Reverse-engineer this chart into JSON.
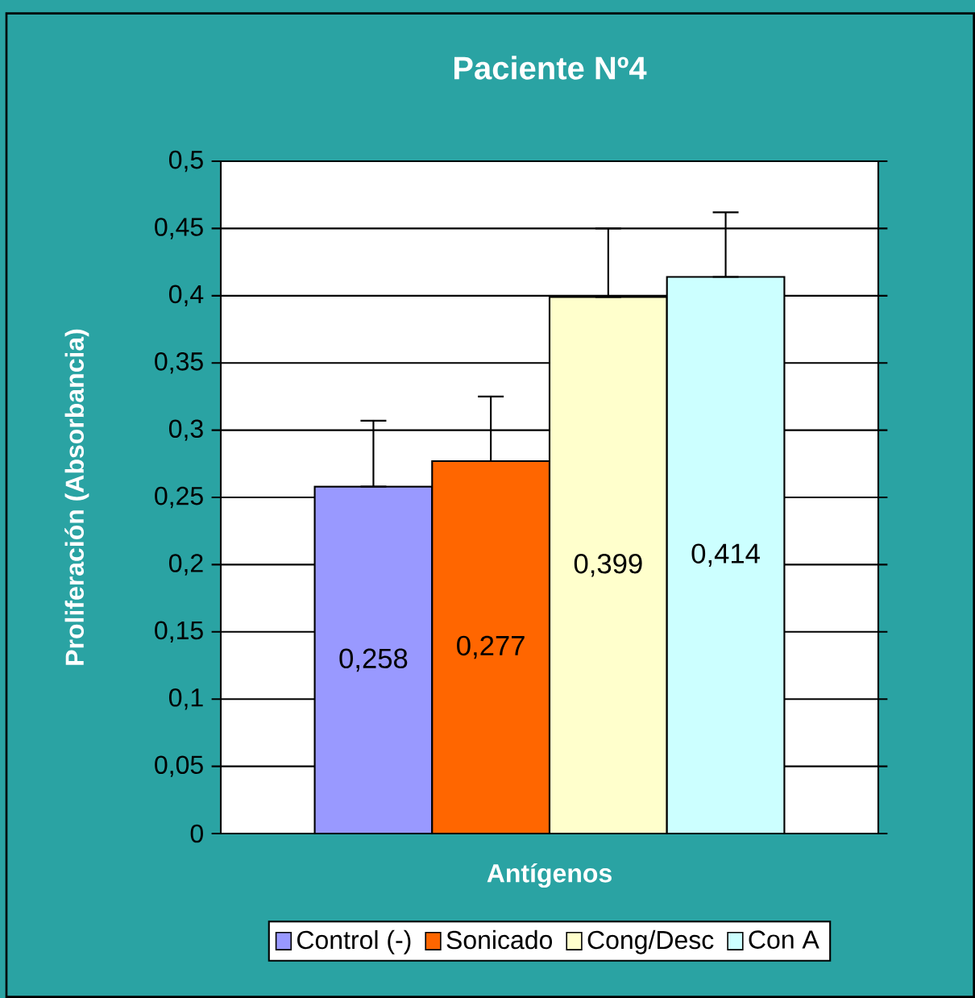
{
  "chart_data": {
    "type": "bar",
    "title": "Paciente Nº4",
    "xlabel": "Antígenos",
    "ylabel": "Proliferación (Absorbancia)",
    "categories": [
      null
    ],
    "series": [
      {
        "name": "Control (-)",
        "color": "#9999ff",
        "values": [
          0.258
        ],
        "value_labels": [
          "0,258"
        ],
        "errors": [
          [
            0.258,
            0.307
          ]
        ]
      },
      {
        "name": "Sonicado",
        "color": "#ff6600",
        "values": [
          0.277
        ],
        "value_labels": [
          "0,277"
        ],
        "errors": [
          [
            0.277,
            0.325
          ]
        ]
      },
      {
        "name": "Cong/Desc",
        "color": "#ffffcc",
        "values": [
          0.399
        ],
        "value_labels": [
          "0,399"
        ],
        "errors": [
          [
            0.399,
            0.45
          ]
        ]
      },
      {
        "name": "Con A",
        "color": "#ccffff",
        "values": [
          0.414
        ],
        "value_labels": [
          "0,414"
        ],
        "errors": [
          [
            0.414,
            0.462
          ]
        ]
      }
    ],
    "ylim": [
      0,
      0.5
    ],
    "yticks": [
      0,
      {
        "value": 0.05,
        "label": "0,05"
      },
      {
        "value": 0.1,
        "label": "0,1"
      },
      {
        "value": 0.15,
        "label": "0,15"
      },
      {
        "value": 0.2,
        "label": "0,2"
      },
      {
        "value": 0.25,
        "label": "0,25"
      },
      {
        "value": 0.3,
        "label": "0,3"
      },
      {
        "value": 0.35,
        "label": "0,35"
      },
      {
        "value": 0.4,
        "label": "0,4"
      },
      {
        "value": 0.45,
        "label": "0,45"
      },
      {
        "value": 0.5,
        "label": "0,5"
      }
    ],
    "grid": "y",
    "legend": "bottom"
  }
}
